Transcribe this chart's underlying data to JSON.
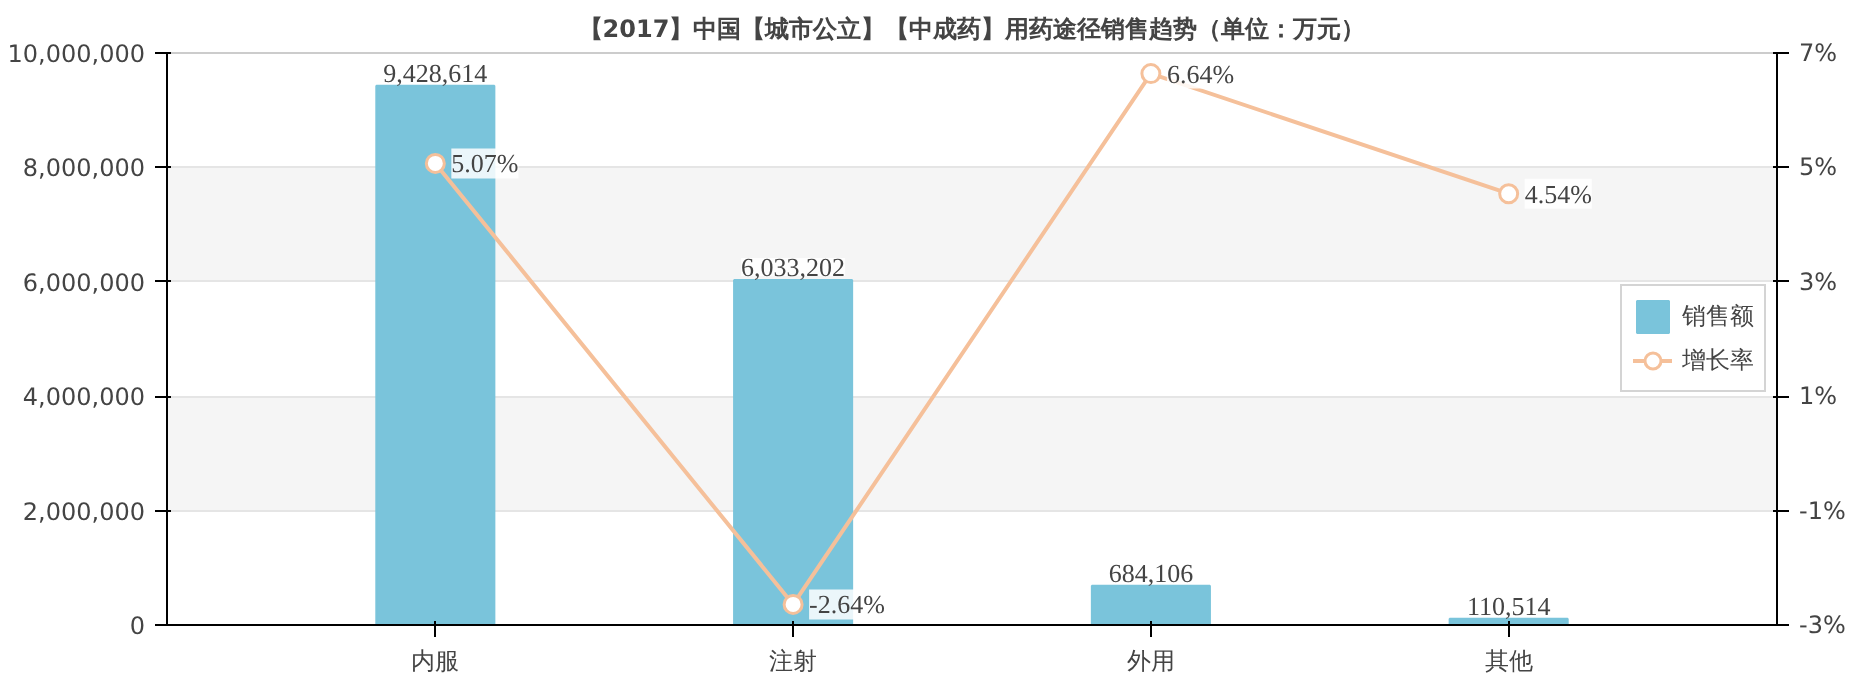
{
  "chart_data": {
    "type": "bar",
    "title": "【2017】中国【城市公立】【中成药】用药途径销售趋势（单位：万元）",
    "categories": [
      "内服",
      "注射",
      "外用",
      "其他"
    ],
    "series": [
      {
        "name": "销售额",
        "type": "bar",
        "color": "#7ac4db",
        "values": [
          9428614,
          6033202,
          684106,
          110514
        ],
        "value_labels": [
          "9,428,614",
          "6,033,202",
          "684,106",
          "110,514"
        ]
      },
      {
        "name": "增长率",
        "type": "line",
        "axis": "y2",
        "color": "#f5c09a",
        "marker": "circle",
        "values": [
          5.07,
          -2.64,
          6.64,
          4.54
        ],
        "value_labels": [
          "5.07%",
          "-2.64%",
          "6.64%",
          "4.54%"
        ]
      }
    ],
    "ylim": [
      0,
      10000000
    ],
    "yticks": [
      {
        "value": 0,
        "label": "0"
      },
      {
        "value": 2000000,
        "label": "2,000,000"
      },
      {
        "value": 4000000,
        "label": "4,000,000"
      },
      {
        "value": 6000000,
        "label": "6,000,000"
      },
      {
        "value": 8000000,
        "label": "8,000,000"
      },
      {
        "value": 10000000,
        "label": "10,000,000"
      }
    ],
    "y2lim": [
      -3,
      7
    ],
    "y2ticks": [
      {
        "value": -3,
        "label": "-3%"
      },
      {
        "value": -1,
        "label": "-1%"
      },
      {
        "value": 1,
        "label": "1%"
      },
      {
        "value": 3,
        "label": "3%"
      },
      {
        "value": 5,
        "label": "5%"
      },
      {
        "value": 7,
        "label": "7%"
      }
    ],
    "grid": "y",
    "legend": "right"
  }
}
